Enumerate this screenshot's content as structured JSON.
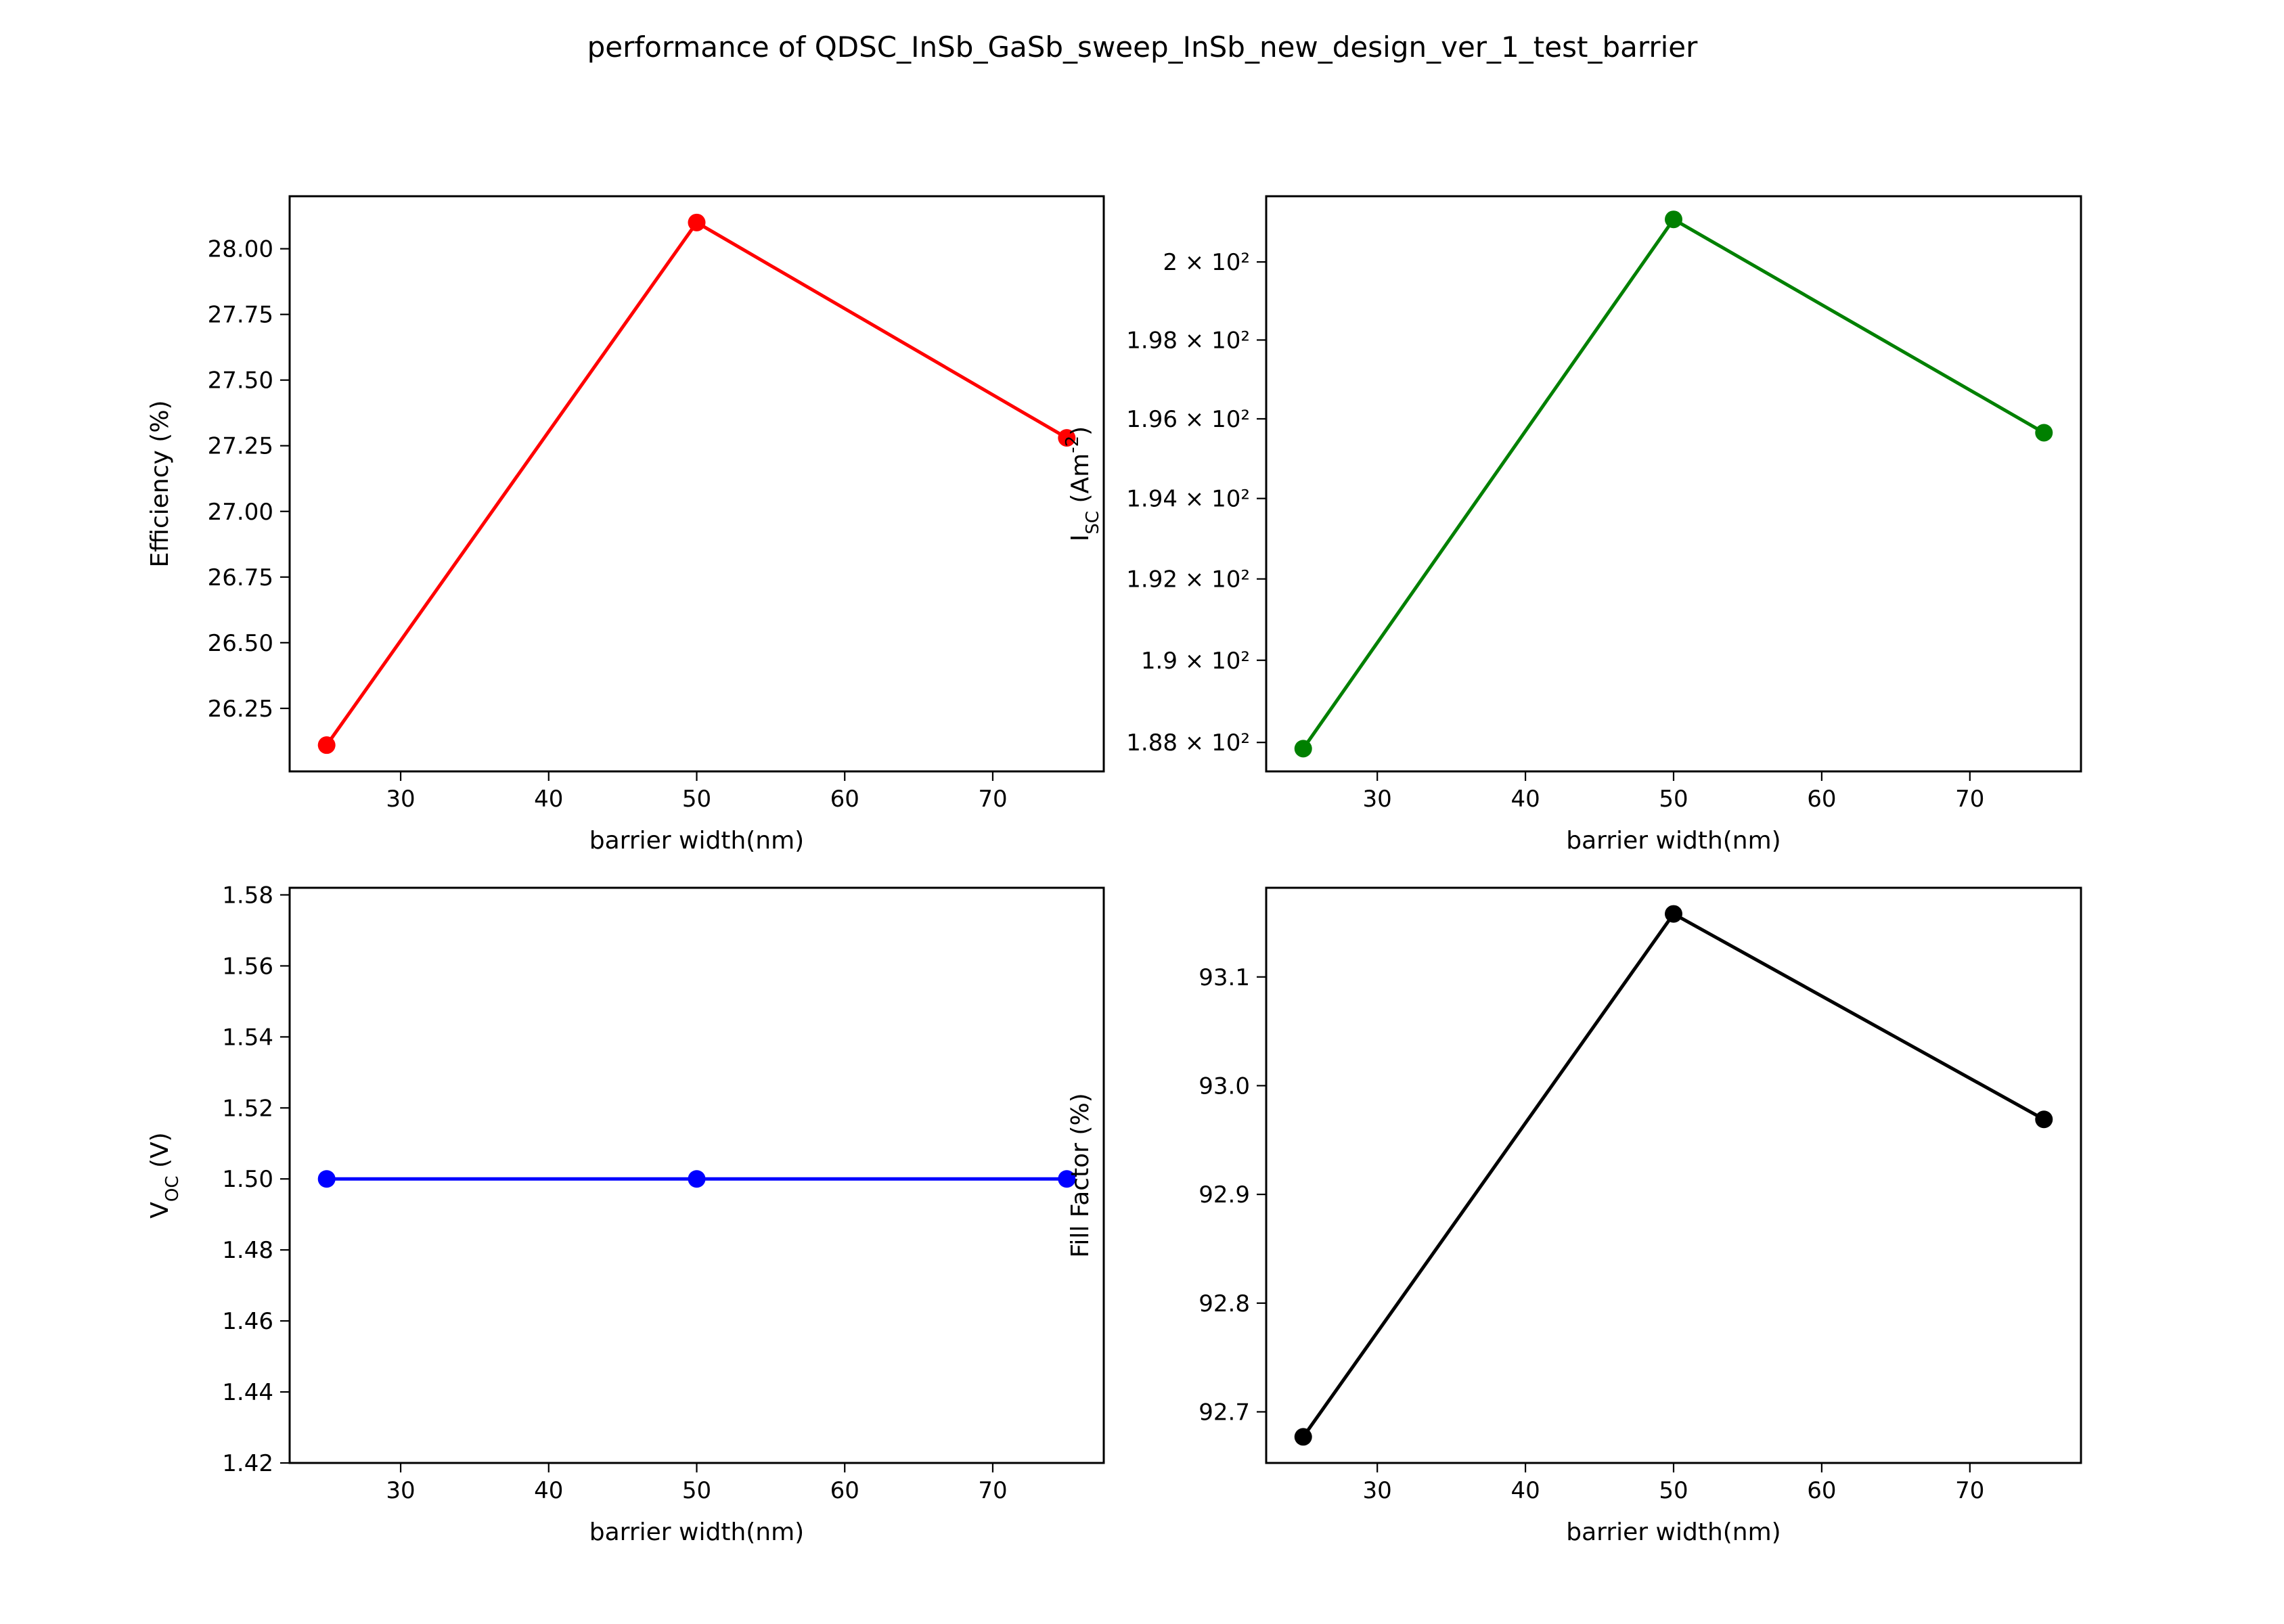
{
  "figure": {
    "title": "performance of QDSC_InSb_GaSb_sweep_InSb_new_design_ver_1_test_barrier"
  },
  "chart_data": [
    {
      "type": "line",
      "color": "#ff0000",
      "x": [
        25,
        50,
        75
      ],
      "y": [
        26.11,
        28.1,
        27.28
      ],
      "xlabel": "barrier width(nm)",
      "ylabel_parts": [
        [
          "Efficiency (%)",
          ""
        ]
      ],
      "xlim": [
        22.5,
        77.5
      ],
      "ylim": [
        26.01,
        28.2
      ],
      "xticks": [
        30,
        40,
        50,
        60,
        70
      ],
      "xtick_labels": [
        "30",
        "40",
        "50",
        "60",
        "70"
      ],
      "yticks": [
        26.25,
        26.5,
        26.75,
        27.0,
        27.25,
        27.5,
        27.75,
        28.0
      ],
      "ytick_labels": [
        "26.25",
        "26.50",
        "26.75",
        "27.00",
        "27.25",
        "27.50",
        "27.75",
        "28.00"
      ]
    },
    {
      "type": "line",
      "color": "#008000",
      "yscale": "log",
      "x": [
        25,
        50,
        75
      ],
      "y": [
        187.85,
        201.1,
        195.65
      ],
      "xlabel": "barrier width(nm)",
      "ylabel_parts": [
        [
          "I",
          ""
        ],
        [
          "SC",
          "sub"
        ],
        [
          " (Am",
          ""
        ],
        [
          "-2",
          "sup"
        ],
        [
          ")",
          ""
        ]
      ],
      "xlim": [
        22.5,
        77.5
      ],
      "ylim": [
        187.3,
        201.7
      ],
      "xticks": [
        30,
        40,
        50,
        60,
        70
      ],
      "xtick_labels": [
        "30",
        "40",
        "50",
        "60",
        "70"
      ],
      "yticks": [
        188,
        190,
        192,
        194,
        196,
        198,
        200
      ],
      "ytick_labels": [
        "1.88 × 10²",
        "1.9 × 10²",
        "1.92 × 10²",
        "1.94 × 10²",
        "1.96 × 10²",
        "1.98 × 10²",
        "2 × 10²"
      ]
    },
    {
      "type": "line",
      "color": "#0000ff",
      "x": [
        25,
        50,
        75
      ],
      "y": [
        1.5,
        1.5,
        1.5
      ],
      "xlabel": "barrier width(nm)",
      "ylabel_parts": [
        [
          "V",
          ""
        ],
        [
          "OC",
          "sub"
        ],
        [
          " (V)",
          ""
        ]
      ],
      "xlim": [
        22.5,
        77.5
      ],
      "ylim": [
        1.42,
        1.582
      ],
      "xticks": [
        30,
        40,
        50,
        60,
        70
      ],
      "xtick_labels": [
        "30",
        "40",
        "50",
        "60",
        "70"
      ],
      "yticks": [
        1.42,
        1.44,
        1.46,
        1.48,
        1.5,
        1.52,
        1.54,
        1.56,
        1.58
      ],
      "ytick_labels": [
        "1.42",
        "1.44",
        "1.46",
        "1.48",
        "1.50",
        "1.52",
        "1.54",
        "1.56",
        "1.58"
      ]
    },
    {
      "type": "line",
      "color": "#000000",
      "x": [
        25,
        50,
        75
      ],
      "y": [
        92.677,
        93.158,
        92.969
      ],
      "xlabel": "barrier width(nm)",
      "ylabel_parts": [
        [
          "Fill Factor (%)",
          ""
        ]
      ],
      "xlim": [
        22.5,
        77.5
      ],
      "ylim": [
        92.653,
        93.182
      ],
      "xticks": [
        30,
        40,
        50,
        60,
        70
      ],
      "xtick_labels": [
        "30",
        "40",
        "50",
        "60",
        "70"
      ],
      "yticks": [
        92.7,
        92.8,
        92.9,
        93.0,
        93.1
      ],
      "ytick_labels": [
        "92.7",
        "92.8",
        "92.9",
        "93.0",
        "93.1"
      ]
    }
  ]
}
